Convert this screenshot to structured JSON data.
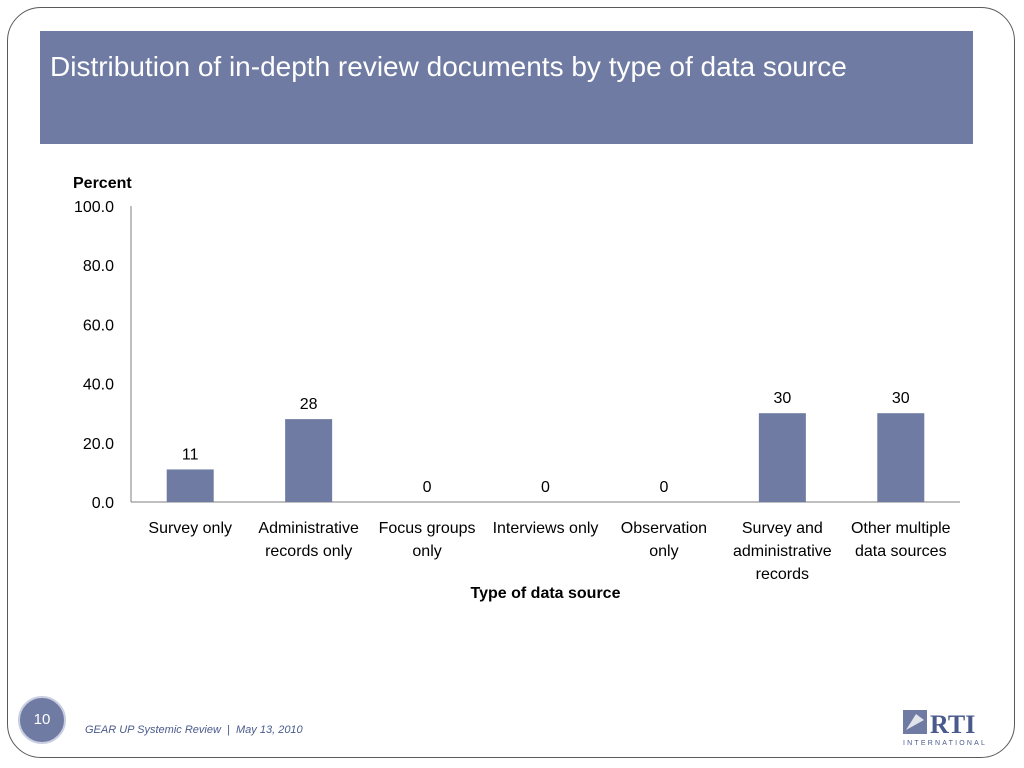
{
  "slide": {
    "title": "Distribution of in-depth review documents by type of data source",
    "page_number": "10",
    "footer_left": "GEAR UP Systemic Review",
    "footer_sep": "|",
    "footer_date": "May 13, 2010",
    "logo_text": "RTI",
    "logo_subtext": "INTERNATIONAL"
  },
  "colors": {
    "bar": "#6f7ba2",
    "title_bar": "#6f7ba2",
    "axis": "#7f7f7f",
    "text": "#000000"
  },
  "chart_data": {
    "type": "bar",
    "ylabel": "Percent",
    "xlabel": "Type of data source",
    "ylim": [
      0,
      100
    ],
    "y_ticks": [
      "0.0",
      "20.0",
      "40.0",
      "60.0",
      "80.0",
      "100.0"
    ],
    "categories": [
      [
        "Survey only"
      ],
      [
        "Administrative",
        "records only"
      ],
      [
        "Focus groups",
        "only"
      ],
      [
        "Interviews only"
      ],
      [
        "Observation",
        "only"
      ],
      [
        "Survey and",
        "administrative",
        "records"
      ],
      [
        "Other multiple",
        "data sources"
      ]
    ],
    "values": [
      11,
      28,
      0,
      0,
      0,
      30,
      30
    ],
    "data_labels": [
      "11",
      "28",
      "0",
      "0",
      "0",
      "30",
      "30"
    ],
    "grid": false,
    "legend": false
  }
}
